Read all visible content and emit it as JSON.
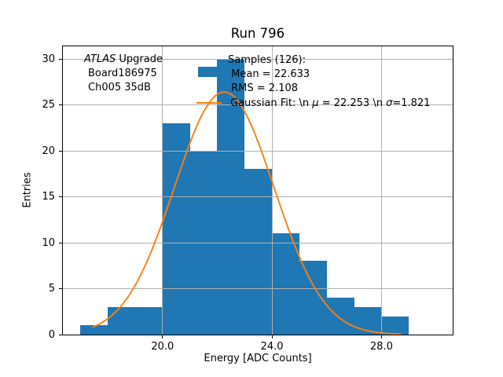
{
  "chart_data": {
    "type": "bar",
    "title": "Run 796",
    "xlabel": "Energy [ADC Counts]",
    "ylabel": "Entries",
    "bin_edges": [
      17,
      18,
      19,
      20,
      21,
      22,
      23,
      24,
      25,
      26,
      27,
      28,
      29
    ],
    "counts": [
      1,
      3,
      3,
      23,
      20,
      30,
      18,
      11,
      8,
      4,
      3,
      2
    ],
    "samples_total": 126,
    "xlim": [
      16.36,
      30.6
    ],
    "ylim": [
      0,
      31.37
    ],
    "x_ticks": [
      20,
      24,
      28
    ],
    "x_tick_labels": [
      "20.0",
      "24.0",
      "28.0"
    ],
    "y_ticks": [
      0,
      5,
      10,
      15,
      20,
      25,
      30
    ],
    "y_tick_labels": [
      "0",
      "5",
      "10",
      "15",
      "20",
      "25",
      "30"
    ],
    "grid": true,
    "legend_position": "upper center",
    "bar_color": "#1f77b4",
    "fit_color": "#ff7f0e",
    "grid_color": "#b0b0b0",
    "gaussian_fit": {
      "mu": 22.253,
      "sigma": 1.821,
      "amplitude": 26.4,
      "x_start": 17.45,
      "x_end": 28.72
    }
  },
  "annotations": {
    "line1_italic": "ATLAS",
    "line1_rest": " Upgrade",
    "line2": "Board186975",
    "line3": "Ch005 35dB"
  },
  "legend": {
    "samples_label": "Samples (126):",
    "mean_label": " Mean = 22.633",
    "rms_label": " RMS = 2.108",
    "fit_prefix": "Gaussian Fit: \\n ",
    "fit_mu_symbol": "μ",
    "fit_mid": " = 22.253 \\n ",
    "fit_sigma_symbol": "σ",
    "fit_suffix": "=1.821"
  }
}
